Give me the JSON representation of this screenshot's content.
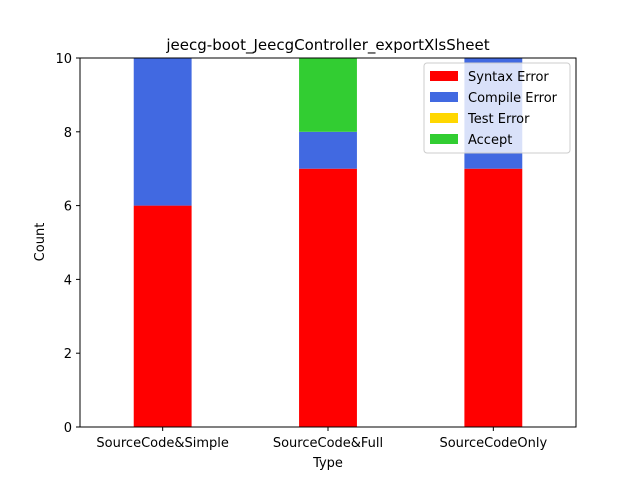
{
  "chart_data": {
    "type": "bar",
    "stacked": true,
    "title": "jeecg-boot_JeecgController_exportXlsSheet",
    "xlabel": "Type",
    "ylabel": "Count",
    "ylim": [
      0,
      10
    ],
    "yticks": [
      0,
      2,
      4,
      6,
      8,
      10
    ],
    "categories": [
      "SourceCode&Simple",
      "SourceCode&Full",
      "SourceCodeOnly"
    ],
    "series": [
      {
        "name": "Syntax Error",
        "color": "#ff0000",
        "values": [
          6,
          7,
          7
        ]
      },
      {
        "name": "Compile Error",
        "color": "#4169e1",
        "values": [
          4,
          1,
          3
        ]
      },
      {
        "name": "Test Error",
        "color": "#ffd700",
        "values": [
          0,
          0,
          0
        ]
      },
      {
        "name": "Accept",
        "color": "#32cd32",
        "values": [
          0,
          2,
          0
        ]
      }
    ],
    "legend_position": "top-right",
    "grid": false
  }
}
